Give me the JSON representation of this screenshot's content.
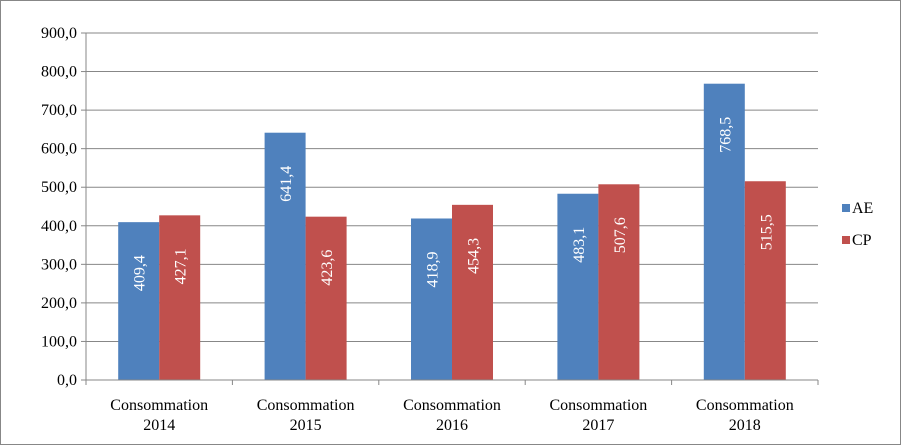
{
  "chart_data": {
    "type": "bar",
    "categories": [
      [
        "Consommation",
        "2014"
      ],
      [
        "Consommation",
        "2015"
      ],
      [
        "Consommation",
        "2016"
      ],
      [
        "Consommation",
        "2017"
      ],
      [
        "Consommation",
        "2018"
      ]
    ],
    "series": [
      {
        "name": "AE",
        "color": "#4F81BD",
        "values": [
          409.4,
          641.4,
          418.9,
          483.1,
          768.5
        ],
        "labels": [
          "409,4",
          "641,4",
          "418,9",
          "483,1",
          "768,5"
        ]
      },
      {
        "name": "CP",
        "color": "#C0504D",
        "values": [
          427.1,
          423.6,
          454.3,
          507.6,
          515.5
        ],
        "labels": [
          "427,1",
          "423,6",
          "454,3",
          "507,6",
          "515,5"
        ]
      }
    ],
    "ylim": [
      0,
      900
    ],
    "yticks": [
      "0,0",
      "100,0",
      "200,0",
      "300,0",
      "400,0",
      "500,0",
      "600,0",
      "700,0",
      "800,0",
      "900,0"
    ],
    "grid": true,
    "legend_position": "right",
    "gridline_color": "#878787"
  }
}
